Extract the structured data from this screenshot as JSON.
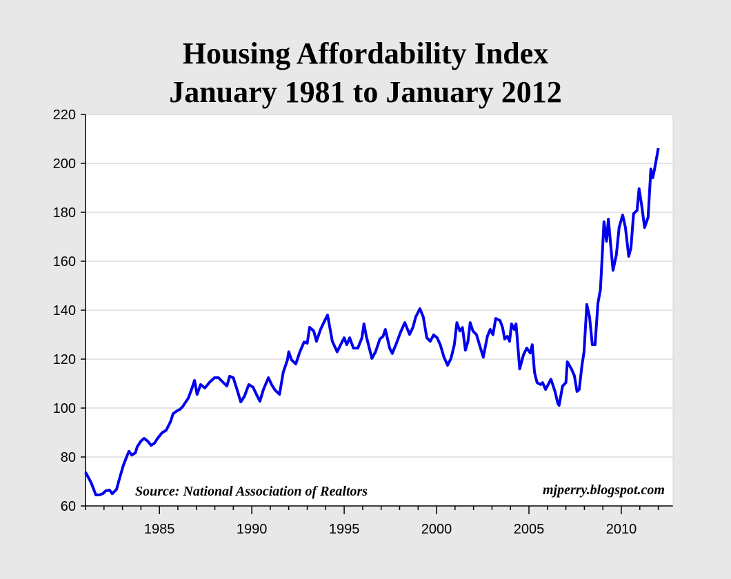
{
  "chart_data": {
    "type": "line",
    "title": "Housing Affordability Index",
    "subtitle": "January 1981 to January 2012",
    "xlabel": "",
    "ylabel": "",
    "xlim": [
      1981,
      2012.8
    ],
    "ylim": [
      60,
      220
    ],
    "x_ticks": [
      1985,
      1990,
      1995,
      2000,
      2005,
      2010
    ],
    "y_ticks": [
      60,
      80,
      100,
      120,
      140,
      160,
      180,
      200,
      220
    ],
    "grid": "horizontal",
    "line_color": "#0000ee",
    "annotations": {
      "source": "Source: National Association of Realtors",
      "credit": "mjperry.blogspot.com"
    },
    "series": [
      {
        "x": [
          1981.0,
          1981.3,
          1981.56,
          1981.75,
          1981.93,
          1982.1,
          1982.3,
          1982.45,
          1982.68,
          1982.87,
          1983.05,
          1983.24,
          1983.35,
          1983.5,
          1983.7,
          1983.8,
          1984.0,
          1984.17,
          1984.36,
          1984.55,
          1984.73,
          1984.9,
          1985.14,
          1985.37,
          1985.6,
          1985.74,
          1985.96,
          1986.1,
          1986.26,
          1986.41,
          1986.56,
          1986.75,
          1986.9,
          1987.04,
          1987.23,
          1987.46,
          1987.7,
          1987.98,
          1988.2,
          1988.46,
          1988.65,
          1988.8,
          1989.0,
          1989.2,
          1989.4,
          1989.6,
          1989.84,
          1990.07,
          1990.25,
          1990.44,
          1990.63,
          1990.9,
          1991.07,
          1991.26,
          1991.5,
          1991.7,
          1991.93,
          1992.0,
          1992.15,
          1992.38,
          1992.6,
          1992.83,
          1993.0,
          1993.13,
          1993.35,
          1993.5,
          1993.72,
          1993.95,
          1994.1,
          1994.36,
          1994.62,
          1994.85,
          1995.0,
          1995.14,
          1995.3,
          1995.5,
          1995.74,
          1995.96,
          1996.07,
          1996.2,
          1996.5,
          1996.7,
          1996.93,
          1997.1,
          1997.23,
          1997.46,
          1997.6,
          1997.83,
          1998.05,
          1998.28,
          1998.54,
          1998.72,
          1998.87,
          1999.1,
          1999.28,
          1999.47,
          1999.66,
          1999.84,
          2000.03,
          2000.2,
          2000.4,
          2000.6,
          2000.78,
          2000.96,
          2001.1,
          2001.26,
          2001.4,
          2001.56,
          2001.7,
          2001.82,
          2001.97,
          2002.16,
          2002.34,
          2002.53,
          2002.75,
          2002.9,
          2003.05,
          2003.2,
          2003.43,
          2003.57,
          2003.69,
          2003.83,
          2003.95,
          2004.06,
          2004.2,
          2004.3,
          2004.5,
          2004.7,
          2004.88,
          2005.07,
          2005.18,
          2005.3,
          2005.44,
          2005.63,
          2005.74,
          2005.9,
          2006.04,
          2006.19,
          2006.41,
          2006.56,
          2006.63,
          2006.82,
          2007.0,
          2007.08,
          2007.3,
          2007.46,
          2007.6,
          2007.72,
          2007.87,
          2007.98,
          2008.13,
          2008.28,
          2008.43,
          2008.58,
          2008.73,
          2008.87,
          2009.06,
          2009.2,
          2009.3,
          2009.55,
          2009.73,
          2009.88,
          2010.07,
          2010.22,
          2010.4,
          2010.52,
          2010.66,
          2010.85,
          2010.96,
          2011.1,
          2011.26,
          2011.45,
          2011.6,
          2011.7,
          2011.8,
          2012.0
        ],
        "y": [
          73.8,
          69.6,
          64.5,
          64.5,
          65,
          66.2,
          66.5,
          65,
          66.8,
          72,
          76.6,
          80.3,
          82.3,
          80.8,
          81.7,
          84.2,
          86.5,
          87.6,
          86.5,
          84.8,
          85.6,
          87.6,
          89.9,
          91,
          94.4,
          97.7,
          98.9,
          99.4,
          100.6,
          102.3,
          104,
          107.9,
          111.3,
          105.6,
          109.6,
          108.2,
          110.4,
          112.4,
          112.4,
          110.4,
          109,
          113,
          112.4,
          107.6,
          102.5,
          104.8,
          109.6,
          108.5,
          105.6,
          102.8,
          107.6,
          112.4,
          109.6,
          107.3,
          105.6,
          114.6,
          119.7,
          123,
          119.7,
          118,
          123,
          127,
          126.5,
          133,
          131.5,
          127.3,
          132.1,
          135.8,
          138,
          127.3,
          123,
          126.5,
          128.7,
          125.9,
          128.7,
          124.5,
          124.5,
          128.7,
          134.4,
          129.3,
          120.3,
          123,
          128.2,
          129.3,
          132.1,
          124.5,
          122.3,
          126.5,
          131,
          134.9,
          130.1,
          133,
          137.2,
          140.6,
          137.2,
          128.7,
          127.3,
          129.9,
          128.7,
          125.9,
          120.8,
          117.5,
          120.3,
          125.9,
          134.9,
          131.5,
          132.9,
          123.7,
          127.3,
          134.9,
          131.5,
          130,
          125.4,
          120.8,
          129.3,
          132.1,
          130,
          136.6,
          135.8,
          133,
          128.2,
          129.3,
          127.3,
          134.4,
          132.1,
          134.4,
          116,
          121.7,
          124.5,
          122.5,
          125.9,
          114.6,
          110.4,
          109.6,
          110.4,
          107.6,
          109.6,
          111.8,
          106.8,
          102,
          101.1,
          109,
          110.4,
          118.9,
          116,
          113.2,
          106.8,
          107.6,
          117.5,
          123,
          142.3,
          137.2,
          125.9,
          125.9,
          142.8,
          148.5,
          176.1,
          168.2,
          177.2,
          156.3,
          162.5,
          173.8,
          178.9,
          173.8,
          162,
          165.4,
          179.4,
          180.8,
          189.6,
          182.8,
          173.8,
          178,
          197.7,
          194.1,
          197.7,
          206.2
        ]
      }
    ]
  }
}
